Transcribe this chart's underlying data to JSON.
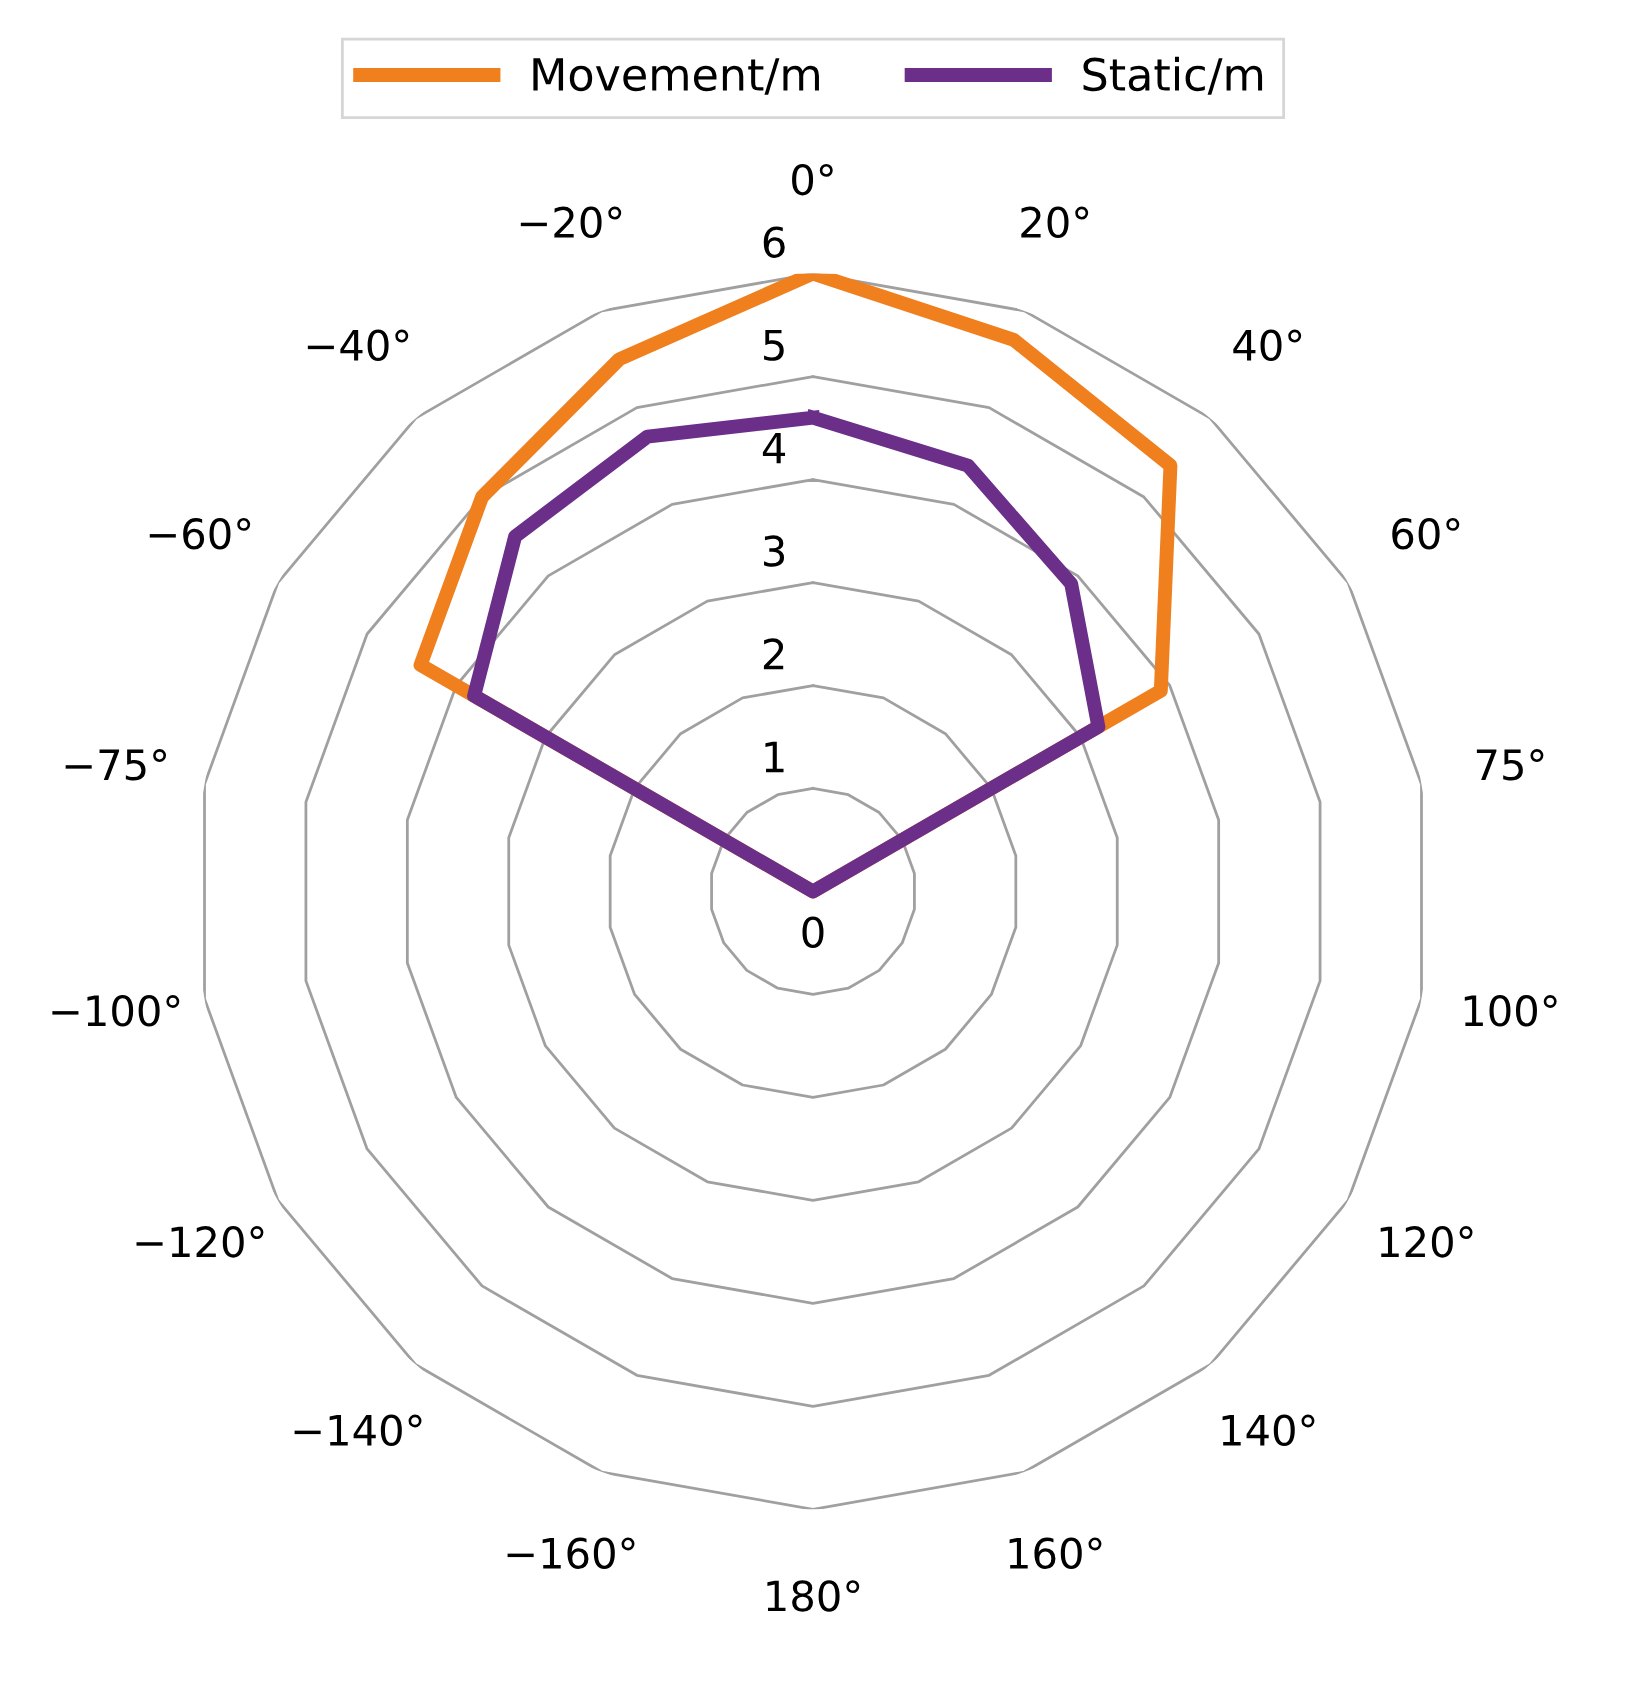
{
  "chart_data": {
    "type": "radar",
    "categories": [
      "0°",
      "20°",
      "40°",
      "60°",
      "75°",
      "100°",
      "120°",
      "140°",
      "160°",
      "180°",
      "−160°",
      "−140°",
      "−120°",
      "−100°",
      "−75°",
      "−60°",
      "−40°",
      "−20°"
    ],
    "series": [
      {
        "name": "Movement/m",
        "color": "#f07f1e",
        "values": [
          6.0,
          5.7,
          5.4,
          3.9,
          0,
          0,
          0,
          0,
          0,
          0,
          0,
          0,
          0,
          0,
          0,
          4.4,
          5.0,
          5.5
        ]
      },
      {
        "name": "Static/m",
        "color": "#6b2f8a",
        "values": [
          4.6,
          4.4,
          3.9,
          3.2,
          0,
          0,
          0,
          0,
          0,
          0,
          0,
          0,
          0,
          0,
          0,
          3.8,
          4.5,
          4.7
        ]
      }
    ],
    "ylim": [
      0,
      6
    ],
    "yticks": [
      0,
      1,
      2,
      3,
      4,
      5,
      6
    ],
    "legend": "top",
    "line_style": "solid",
    "marker": "none"
  }
}
